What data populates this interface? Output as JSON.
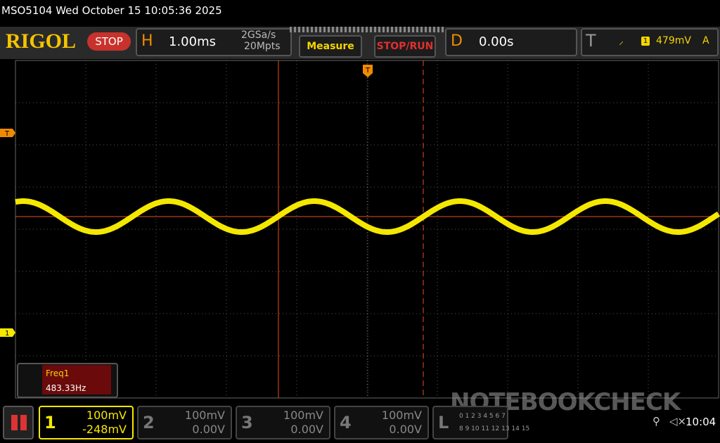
{
  "status_bar": {
    "text": "MSO5104  Wed October 15 10:05:36 2025"
  },
  "toolbar": {
    "brand": "RIGOL",
    "run_state": "STOP",
    "horizontal": {
      "letter": "H",
      "timebase": "1.00ms",
      "sample_rate": "2GSa/s",
      "memory_depth": "20Mpts"
    },
    "measure_button": "Measure",
    "stop_run_button": "STOP/RUN",
    "delay": {
      "letter": "D",
      "value": "0.00s"
    },
    "trigger": {
      "letter": "T",
      "source": "1",
      "level": "479mV",
      "mode": "A"
    }
  },
  "markers": {
    "trigger_level": "T",
    "channel1_offset": "1",
    "trigger_position": "T"
  },
  "measurement": {
    "label": "Freq1",
    "value": "483.33Hz"
  },
  "channels": [
    {
      "number": "1",
      "scale": "100mV",
      "offset": "-248mV"
    },
    {
      "number": "2",
      "scale": "100mV",
      "offset": "0.00V"
    },
    {
      "number": "3",
      "scale": "100mV",
      "offset": "0.00V"
    },
    {
      "number": "4",
      "scale": "100mV",
      "offset": "0.00V"
    }
  ],
  "logic": {
    "letter": "L",
    "row1": "0 1 2 3 4 5 6 7",
    "row2": "8 9 10 11 12 13 14 15"
  },
  "watermark": "NOTEBOOKCHECK",
  "clock": "10:04"
}
